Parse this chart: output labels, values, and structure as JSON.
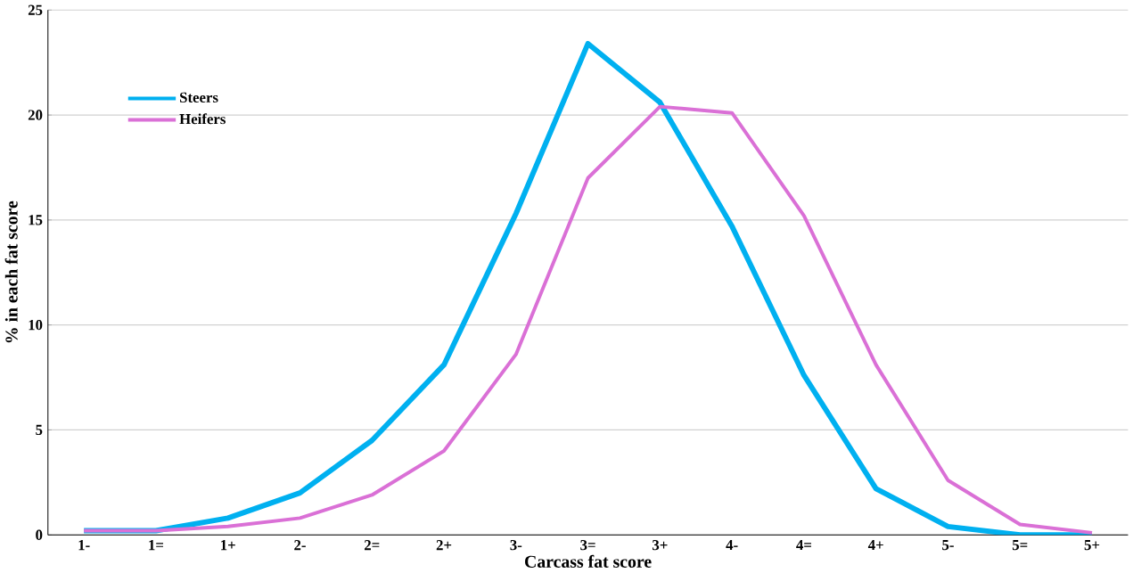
{
  "chart_data": {
    "type": "line",
    "xlabel": "Carcass fat score",
    "ylabel": "% in each fat score",
    "categories": [
      "1-",
      "1=",
      "1+",
      "2-",
      "2=",
      "2+",
      "3-",
      "3=",
      "3+",
      "4-",
      "4=",
      "4+",
      "5-",
      "5=",
      "5+"
    ],
    "series": [
      {
        "name": "Steers",
        "color": "#00b0f0",
        "values": [
          0.2,
          0.2,
          0.8,
          2.0,
          4.5,
          8.1,
          15.3,
          23.4,
          20.6,
          14.7,
          7.6,
          2.2,
          0.4,
          0,
          0
        ]
      },
      {
        "name": "Heifers",
        "color": "#da70d6",
        "values": [
          0.2,
          0.2,
          0.4,
          0.8,
          1.9,
          4.0,
          8.6,
          17.0,
          20.4,
          20.1,
          15.2,
          8.1,
          2.6,
          0.5,
          0.1
        ]
      }
    ],
    "ylim": [
      0,
      25
    ],
    "yticks": [
      0,
      5,
      10,
      15,
      20,
      25
    ],
    "grid": "y",
    "legend": "top left",
    "marker": "none",
    "line_style": "solid"
  }
}
